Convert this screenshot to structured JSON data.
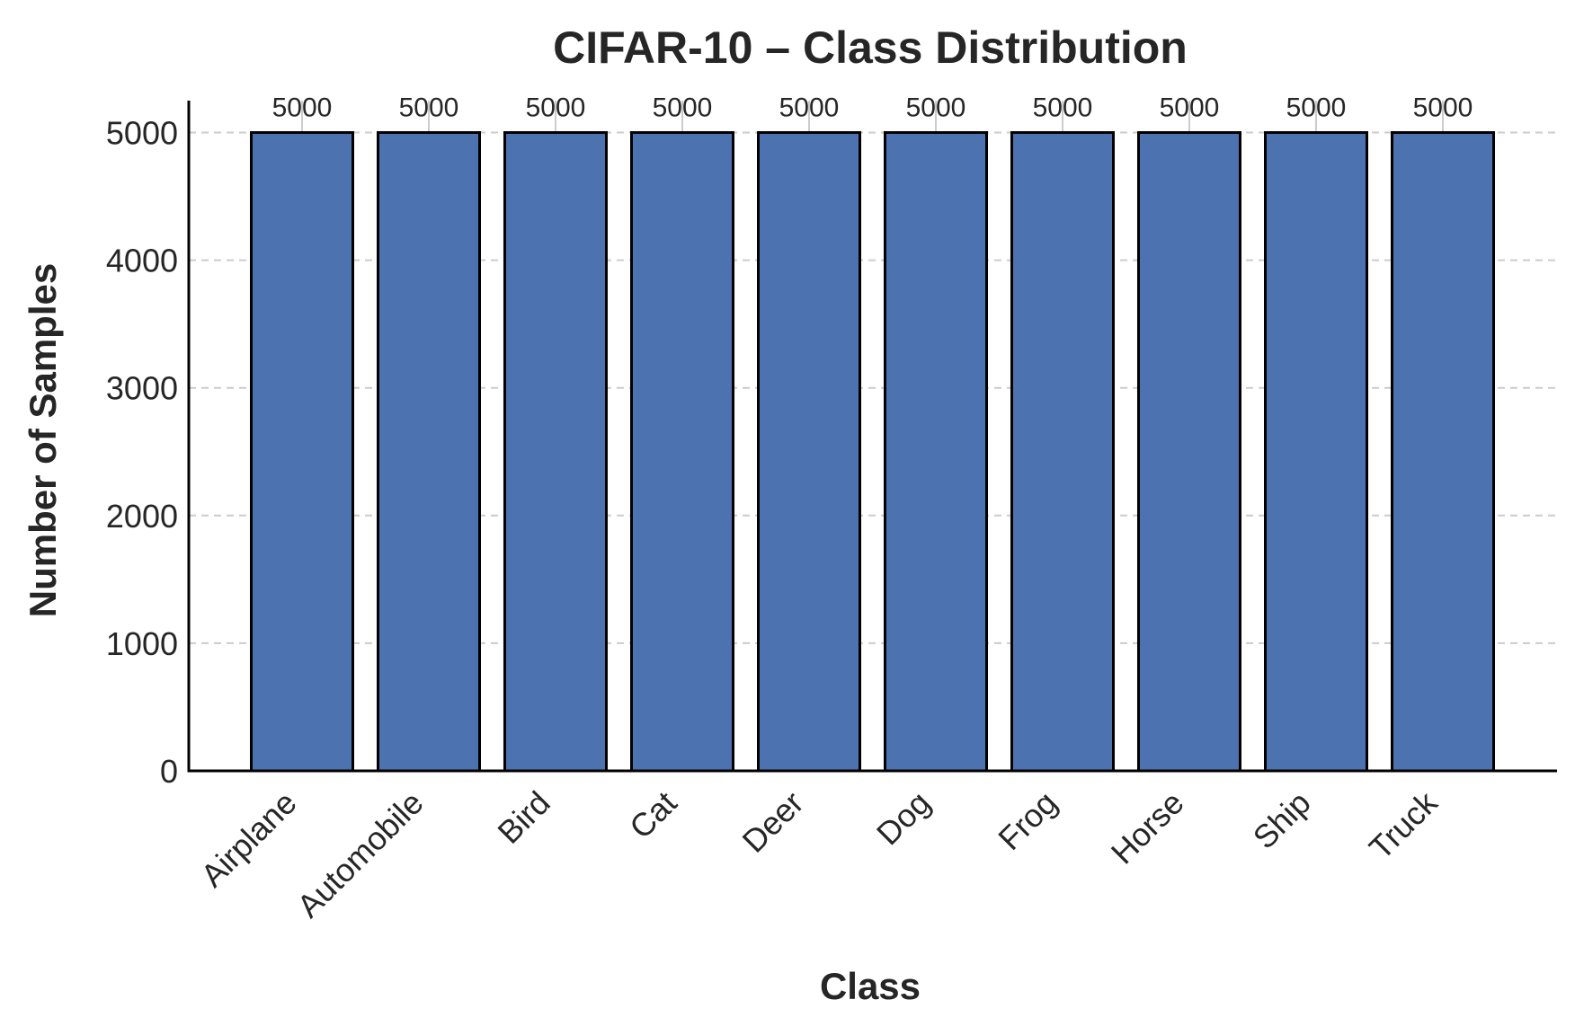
{
  "chart_data": {
    "type": "bar",
    "title": "CIFAR-10 – Class Distribution",
    "xlabel": "Class",
    "ylabel": "Number of Samples",
    "categories": [
      "Airplane",
      "Automobile",
      "Bird",
      "Cat",
      "Deer",
      "Dog",
      "Frog",
      "Horse",
      "Ship",
      "Truck"
    ],
    "values": [
      5000,
      5000,
      5000,
      5000,
      5000,
      5000,
      5000,
      5000,
      5000,
      5000
    ],
    "data_labels": [
      "5000",
      "5000",
      "5000",
      "5000",
      "5000",
      "5000",
      "5000",
      "5000",
      "5000",
      "5000"
    ],
    "yticks": [
      0,
      1000,
      2000,
      3000,
      4000,
      5000
    ],
    "ylim": [
      0,
      5250
    ],
    "grid": "horizontal dashed",
    "legend": "none",
    "bar_color": "#4c72b0",
    "bar_edge_color": "#000000",
    "grid_color": "#cccccc",
    "text_color": "#262626"
  }
}
